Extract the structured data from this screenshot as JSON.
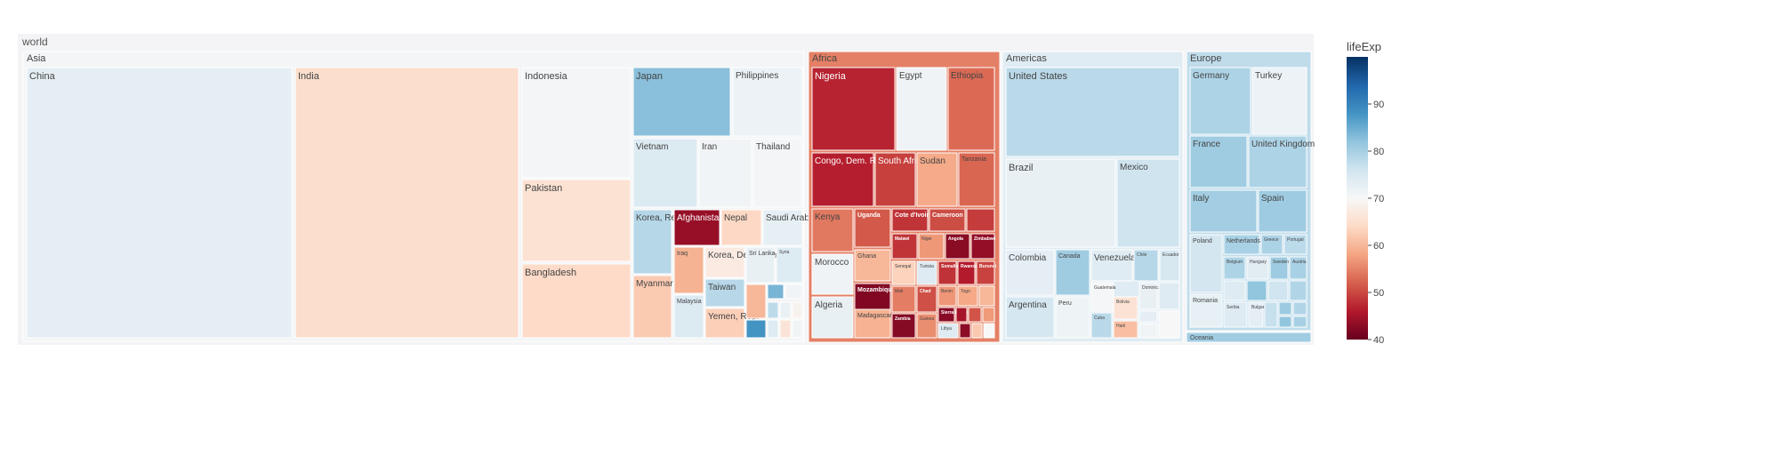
{
  "chart_data": {
    "type": "treemap",
    "root": "world",
    "color_metric": "lifeExp",
    "colorscale": "RdBu",
    "color_range": [
      40,
      100
    ],
    "colorbar": {
      "title": "lifeExp",
      "ticks": [
        40,
        50,
        60,
        70,
        80,
        90
      ]
    },
    "continents": [
      {
        "name": "Asia",
        "lifeExp": 70.7,
        "countries": [
          {
            "name": "China",
            "lifeExp": 73.0
          },
          {
            "name": "India",
            "lifeExp": 64.7
          },
          {
            "name": "Indonesia",
            "lifeExp": 70.7
          },
          {
            "name": "Pakistan",
            "lifeExp": 65.5
          },
          {
            "name": "Bangladesh",
            "lifeExp": 64.1
          },
          {
            "name": "Japan",
            "lifeExp": 82.6
          },
          {
            "name": "Philippines",
            "lifeExp": 71.7
          },
          {
            "name": "Vietnam",
            "lifeExp": 74.2
          },
          {
            "name": "Iran",
            "lifeExp": 71.0
          },
          {
            "name": "Thailand",
            "lifeExp": 70.6
          },
          {
            "name": "Korea, Rep.",
            "lifeExp": 78.6
          },
          {
            "name": "Afghanistan",
            "lifeExp": 43.8
          },
          {
            "name": "Nepal",
            "lifeExp": 63.8
          },
          {
            "name": "Saudi Arabia",
            "lifeExp": 72.8
          },
          {
            "name": "Myanmar",
            "lifeExp": 62.1
          },
          {
            "name": "Iraq",
            "lifeExp": 59.5
          },
          {
            "name": "Korea, Dem. Rep.",
            "lifeExp": 67.3
          },
          {
            "name": "Sri Lanka",
            "lifeExp": 72.4
          },
          {
            "name": "Syria",
            "lifeExp": 74.1
          },
          {
            "name": "Taiwan",
            "lifeExp": 78.4
          },
          {
            "name": "Malaysia",
            "lifeExp": 74.2
          },
          {
            "name": "Yemen, Rep.",
            "lifeExp": 62.7
          }
        ]
      },
      {
        "name": "Africa",
        "lifeExp": 54.8,
        "countries": [
          {
            "name": "Nigeria",
            "lifeExp": 46.9
          },
          {
            "name": "Egypt",
            "lifeExp": 71.3
          },
          {
            "name": "Ethiopia",
            "lifeExp": 52.9
          },
          {
            "name": "Congo, Dem. Rep.",
            "lifeExp": 46.5
          },
          {
            "name": "South Africa",
            "lifeExp": 49.3
          },
          {
            "name": "Sudan",
            "lifeExp": 58.6
          },
          {
            "name": "Tanzania",
            "lifeExp": 52.5
          },
          {
            "name": "Kenya",
            "lifeExp": 54.1
          },
          {
            "name": "Uganda",
            "lifeExp": 51.5
          },
          {
            "name": "Cote d'Ivoire",
            "lifeExp": 48.3
          },
          {
            "name": "Cameroon",
            "lifeExp": 50.4
          },
          {
            "name": "Morocco",
            "lifeExp": 71.2
          },
          {
            "name": "Ghana",
            "lifeExp": 60.0
          },
          {
            "name": "Malawi",
            "lifeExp": 48.3
          },
          {
            "name": "Niger",
            "lifeExp": 56.9
          },
          {
            "name": "Angola",
            "lifeExp": 42.7
          },
          {
            "name": "Zimbabwe",
            "lifeExp": 43.5
          },
          {
            "name": "Senegal",
            "lifeExp": 63.1
          },
          {
            "name": "Tunisia",
            "lifeExp": 73.9
          },
          {
            "name": "Somalia",
            "lifeExp": 48.2
          },
          {
            "name": "Rwanda",
            "lifeExp": 46.2
          },
          {
            "name": "Burundi",
            "lifeExp": 49.6
          },
          {
            "name": "Algeria",
            "lifeExp": 72.3
          },
          {
            "name": "Mozambique",
            "lifeExp": 42.1
          },
          {
            "name": "Mali",
            "lifeExp": 54.5
          },
          {
            "name": "Chad",
            "lifeExp": 50.7
          },
          {
            "name": "Benin",
            "lifeExp": 56.7
          },
          {
            "name": "Togo",
            "lifeExp": 58.4
          },
          {
            "name": "Madagascar",
            "lifeExp": 59.4
          },
          {
            "name": "Zambia",
            "lifeExp": 42.4
          },
          {
            "name": "Guinea",
            "lifeExp": 56.0
          },
          {
            "name": "Sierra Leone",
            "lifeExp": 42.6
          },
          {
            "name": "Libya",
            "lifeExp": 73.9
          }
        ]
      },
      {
        "name": "Americas",
        "lifeExp": 73.6,
        "countries": [
          {
            "name": "United States",
            "lifeExp": 78.2
          },
          {
            "name": "Brazil",
            "lifeExp": 72.4
          },
          {
            "name": "Mexico",
            "lifeExp": 76.2
          },
          {
            "name": "Colombia",
            "lifeExp": 72.9
          },
          {
            "name": "Canada",
            "lifeExp": 80.7
          },
          {
            "name": "Venezuela",
            "lifeExp": 73.7
          },
          {
            "name": "Chile",
            "lifeExp": 78.6
          },
          {
            "name": "Ecuador",
            "lifeExp": 75.0
          },
          {
            "name": "Argentina",
            "lifeExp": 75.3
          },
          {
            "name": "Peru",
            "lifeExp": 71.4
          },
          {
            "name": "Guatemala",
            "lifeExp": 70.3
          },
          {
            "name": "Cuba",
            "lifeExp": 78.3
          },
          {
            "name": "Bolivia",
            "lifeExp": 65.6
          },
          {
            "name": "Haiti",
            "lifeExp": 60.9
          },
          {
            "name": "Dominican Rep.",
            "lifeExp": 72.2
          }
        ]
      },
      {
        "name": "Europe",
        "lifeExp": 77.6,
        "countries": [
          {
            "name": "Germany",
            "lifeExp": 79.4
          },
          {
            "name": "Turkey",
            "lifeExp": 71.8
          },
          {
            "name": "France",
            "lifeExp": 80.7
          },
          {
            "name": "United Kingdom",
            "lifeExp": 79.4
          },
          {
            "name": "Italy",
            "lifeExp": 80.5
          },
          {
            "name": "Spain",
            "lifeExp": 80.9
          },
          {
            "name": "Poland",
            "lifeExp": 75.6
          },
          {
            "name": "Netherlands",
            "lifeExp": 79.8
          },
          {
            "name": "Greece",
            "lifeExp": 79.5
          },
          {
            "name": "Portugal",
            "lifeExp": 78.1
          },
          {
            "name": "Romania",
            "lifeExp": 72.5
          },
          {
            "name": "Belgium",
            "lifeExp": 79.4
          },
          {
            "name": "Hungary",
            "lifeExp": 73.3
          },
          {
            "name": "Sweden",
            "lifeExp": 80.9
          },
          {
            "name": "Austria",
            "lifeExp": 79.8
          },
          {
            "name": "Serbia",
            "lifeExp": 74.0
          },
          {
            "name": "Bulgaria",
            "lifeExp": 73.0
          }
        ]
      },
      {
        "name": "Oceania",
        "lifeExp": 80.7,
        "countries": []
      }
    ]
  }
}
